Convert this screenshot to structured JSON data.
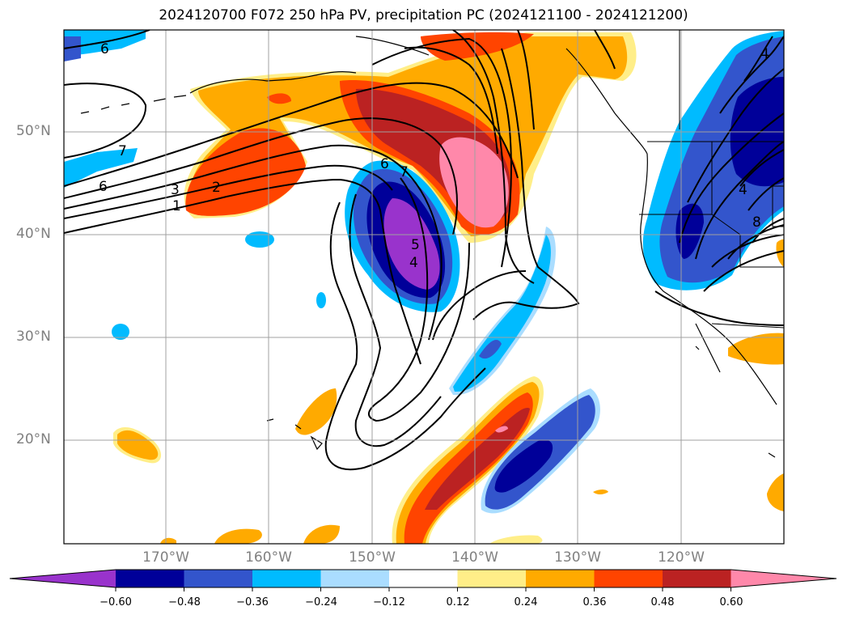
{
  "title": "2024120700 F072 250 hPa PV, precipitation PC (2024121100 - 2024121200)",
  "lat_labels": [
    "50°N",
    "40°N",
    "30°N",
    "20°N"
  ],
  "lon_labels": [
    "170°W",
    "160°W",
    "150°W",
    "140°W",
    "130°W",
    "120°W"
  ],
  "colorbar": {
    "ticks": [
      "−0.60",
      "−0.48",
      "−0.36",
      "−0.24",
      "−0.12",
      "0.12",
      "0.24",
      "0.36",
      "0.48",
      "0.60"
    ],
    "colors": [
      "#9933cc",
      "#000099",
      "#3355cc",
      "#00bbff",
      "#aaddff",
      "#ffffff",
      "#ffee88",
      "#ffaa00",
      "#ff4400",
      "#bb2222",
      "#ff88aa"
    ]
  },
  "contour_labels": [
    "6",
    "7",
    "6",
    "3",
    "2",
    "1",
    "6",
    "7",
    "5",
    "4",
    "4",
    "8",
    "4"
  ]
}
